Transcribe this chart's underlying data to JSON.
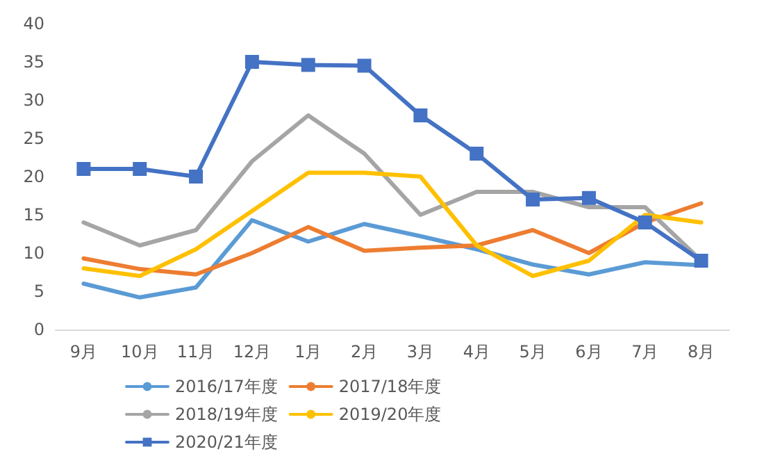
{
  "chart_data": {
    "type": "line",
    "categories": [
      "9月",
      "10月",
      "11月",
      "12月",
      "1月",
      "2月",
      "3月",
      "4月",
      "5月",
      "6月",
      "7月",
      "8月"
    ],
    "series": [
      {
        "name": "2016/17年度",
        "color": "#5b9bd5",
        "values": [
          6,
          4.2,
          5.5,
          14.3,
          11.5,
          13.8,
          12.2,
          10.5,
          8.5,
          7.2,
          8.8,
          8.4
        ]
      },
      {
        "name": "2017/18年度",
        "color": "#ed7d31",
        "values": [
          9.3,
          7.9,
          7.2,
          10,
          13.4,
          10.3,
          10.7,
          11,
          13,
          10,
          14,
          16.5
        ]
      },
      {
        "name": "2018/19年度",
        "color": "#a5a5a5",
        "values": [
          14,
          11,
          13,
          22,
          28,
          23,
          15,
          18,
          18,
          16,
          16,
          9
        ]
      },
      {
        "name": "2019/20年度",
        "color": "#ffc000",
        "values": [
          8,
          7,
          10.5,
          15.5,
          20.5,
          20.5,
          20,
          11,
          7,
          9,
          15,
          14
        ]
      },
      {
        "name": "2020/21年度",
        "color": "#4472c4",
        "marker": "square",
        "values": [
          21,
          21,
          20,
          35,
          34.6,
          34.5,
          28,
          23,
          17,
          17.2,
          14,
          9
        ]
      }
    ],
    "ylim": [
      0,
      40
    ],
    "yticks": [
      0,
      5,
      10,
      15,
      20,
      25,
      30,
      35,
      40
    ],
    "grid": false,
    "legend": "bottom",
    "marker": "none"
  }
}
